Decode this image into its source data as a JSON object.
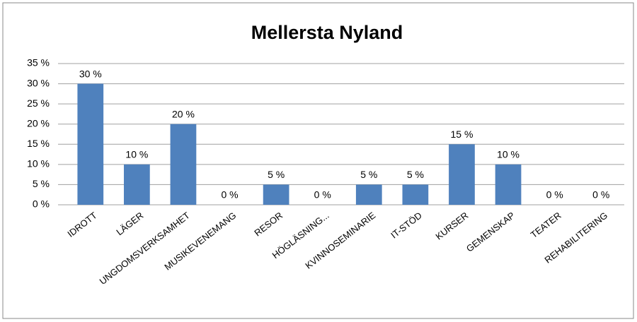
{
  "chart_data": {
    "type": "bar",
    "title": "Mellersta Nyland",
    "categories": [
      "IDROTT",
      "LÄGER",
      "UNGDOMSVERKSAMHET",
      "MUSIKEVENEMANG",
      "RESOR",
      "HÖGLÄSNING...",
      "KVINNOSEMINARIE",
      "IT-STÖD",
      "KURSER",
      "GEMENSKAP",
      "TEATER",
      "REHABILITERING"
    ],
    "values": [
      30,
      10,
      20,
      0,
      5,
      0,
      5,
      5,
      15,
      10,
      0,
      0
    ],
    "value_labels": [
      "30 %",
      "10 %",
      "20 %",
      "0 %",
      "5 %",
      "0 %",
      "5 %",
      "5 %",
      "15 %",
      "10 %",
      "0 %",
      "0 %"
    ],
    "color": "#4f81bd",
    "ylim": [
      0,
      35
    ],
    "yticks": [
      {
        "value": 0,
        "label": "0 %"
      },
      {
        "value": 5,
        "label": "5 %"
      },
      {
        "value": 10,
        "label": "10 %"
      },
      {
        "value": 15,
        "label": "15 %"
      },
      {
        "value": 20,
        "label": "20 %"
      },
      {
        "value": 25,
        "label": "25 %"
      },
      {
        "value": 30,
        "label": "30 %"
      },
      {
        "value": 35,
        "label": "35 %"
      }
    ],
    "grid": true
  }
}
